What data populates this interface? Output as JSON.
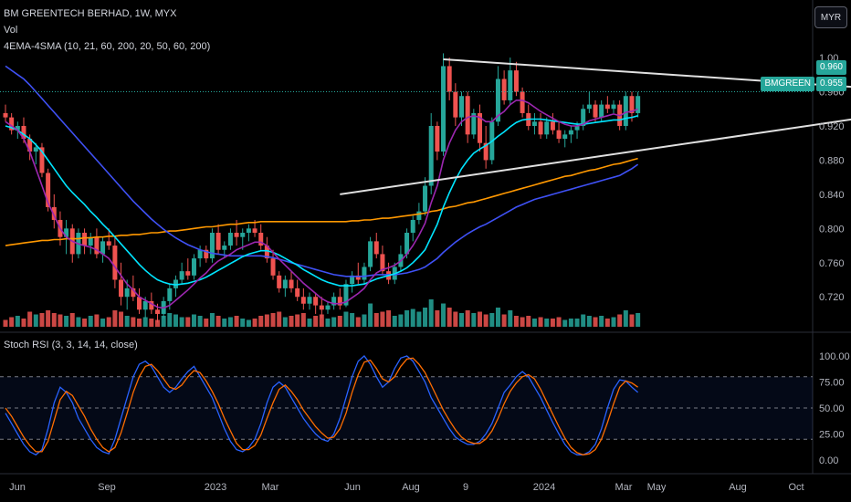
{
  "header": {
    "symbol_line": "BM GREENTECH BERHAD, 1W, MYX",
    "vol_label": "Vol",
    "indicator_label": "4EMA-4SMA (10, 21, 60, 200, 20, 50, 60, 200)"
  },
  "currency_button": "MYR",
  "price_tags": {
    "high_tag": "0.960",
    "symbol_tag": "BMGREEN",
    "last_tag": "0.955"
  },
  "colors": {
    "up": "#26a69a",
    "down": "#ef5350",
    "ema10": "#9c27b0",
    "ema21": "#00e5ff",
    "ema60": "#3f51f5",
    "sma200": "#ff9800",
    "stoch_k": "#2962ff",
    "stoch_d": "#ff6d00",
    "trendline": "#e0e0e0"
  },
  "oscillator": {
    "label": "Stoch RSI (3, 3, 14, 14, close)",
    "ticks": [
      "100.00",
      "75.00",
      "50.00",
      "25.00",
      "0.00"
    ]
  },
  "x_labels": [
    "Jun",
    "Sep",
    "2023",
    "Mar",
    "Jun",
    "Aug",
    "9",
    "2024",
    "Mar",
    "May",
    "Aug",
    "Oct"
  ],
  "chart_data": {
    "type": "candlestick",
    "interval": "1W",
    "price_axis": {
      "ticks": [
        "1.00",
        "0.960",
        "0.920",
        "0.880",
        "0.840",
        "0.800",
        "0.760",
        "0.720"
      ],
      "ylim": [
        0.685,
        1.03
      ]
    },
    "candles": [
      [
        0.935,
        0.945,
        0.925,
        0.93
      ],
      [
        0.93,
        0.935,
        0.91,
        0.915
      ],
      [
        0.915,
        0.925,
        0.905,
        0.92
      ],
      [
        0.92,
        0.93,
        0.9,
        0.905
      ],
      [
        0.905,
        0.91,
        0.88,
        0.89
      ],
      [
        0.89,
        0.9,
        0.875,
        0.895
      ],
      [
        0.895,
        0.9,
        0.86,
        0.865
      ],
      [
        0.865,
        0.87,
        0.82,
        0.825
      ],
      [
        0.825,
        0.84,
        0.8,
        0.81
      ],
      [
        0.81,
        0.82,
        0.78,
        0.79
      ],
      [
        0.79,
        0.81,
        0.77,
        0.8
      ],
      [
        0.8,
        0.805,
        0.76,
        0.77
      ],
      [
        0.77,
        0.8,
        0.765,
        0.795
      ],
      [
        0.795,
        0.8,
        0.77,
        0.78
      ],
      [
        0.78,
        0.795,
        0.77,
        0.79
      ],
      [
        0.79,
        0.8,
        0.765,
        0.77
      ],
      [
        0.77,
        0.79,
        0.76,
        0.785
      ],
      [
        0.785,
        0.8,
        0.775,
        0.78
      ],
      [
        0.78,
        0.79,
        0.73,
        0.74
      ],
      [
        0.74,
        0.76,
        0.71,
        0.72
      ],
      [
        0.72,
        0.74,
        0.705,
        0.73
      ],
      [
        0.73,
        0.745,
        0.715,
        0.72
      ],
      [
        0.72,
        0.73,
        0.7,
        0.705
      ],
      [
        0.705,
        0.72,
        0.695,
        0.715
      ],
      [
        0.715,
        0.725,
        0.7,
        0.705
      ],
      [
        0.705,
        0.712,
        0.69,
        0.7
      ],
      [
        0.7,
        0.72,
        0.695,
        0.715
      ],
      [
        0.715,
        0.735,
        0.705,
        0.73
      ],
      [
        0.73,
        0.745,
        0.72,
        0.74
      ],
      [
        0.74,
        0.76,
        0.735,
        0.75
      ],
      [
        0.75,
        0.765,
        0.74,
        0.745
      ],
      [
        0.745,
        0.77,
        0.74,
        0.765
      ],
      [
        0.765,
        0.78,
        0.755,
        0.775
      ],
      [
        0.775,
        0.78,
        0.76,
        0.765
      ],
      [
        0.765,
        0.8,
        0.76,
        0.795
      ],
      [
        0.795,
        0.805,
        0.77,
        0.775
      ],
      [
        0.775,
        0.785,
        0.765,
        0.78
      ],
      [
        0.78,
        0.8,
        0.775,
        0.795
      ],
      [
        0.795,
        0.81,
        0.78,
        0.79
      ],
      [
        0.79,
        0.8,
        0.775,
        0.795
      ],
      [
        0.795,
        0.805,
        0.785,
        0.8
      ],
      [
        0.8,
        0.81,
        0.79,
        0.795
      ],
      [
        0.795,
        0.805,
        0.775,
        0.78
      ],
      [
        0.78,
        0.79,
        0.76,
        0.765
      ],
      [
        0.765,
        0.775,
        0.74,
        0.745
      ],
      [
        0.745,
        0.75,
        0.725,
        0.73
      ],
      [
        0.73,
        0.745,
        0.72,
        0.74
      ],
      [
        0.74,
        0.75,
        0.725,
        0.73
      ],
      [
        0.73,
        0.74,
        0.715,
        0.72
      ],
      [
        0.72,
        0.73,
        0.705,
        0.712
      ],
      [
        0.712,
        0.725,
        0.705,
        0.72
      ],
      [
        0.72,
        0.725,
        0.7,
        0.71
      ],
      [
        0.71,
        0.72,
        0.695,
        0.705
      ],
      [
        0.705,
        0.715,
        0.7,
        0.71
      ],
      [
        0.71,
        0.725,
        0.705,
        0.72
      ],
      [
        0.72,
        0.73,
        0.705,
        0.71
      ],
      [
        0.71,
        0.74,
        0.708,
        0.735
      ],
      [
        0.735,
        0.75,
        0.725,
        0.745
      ],
      [
        0.745,
        0.76,
        0.735,
        0.74
      ],
      [
        0.74,
        0.76,
        0.735,
        0.755
      ],
      [
        0.755,
        0.79,
        0.75,
        0.785
      ],
      [
        0.785,
        0.795,
        0.765,
        0.77
      ],
      [
        0.77,
        0.78,
        0.745,
        0.75
      ],
      [
        0.75,
        0.76,
        0.735,
        0.74
      ],
      [
        0.74,
        0.76,
        0.735,
        0.755
      ],
      [
        0.755,
        0.78,
        0.75,
        0.77
      ],
      [
        0.77,
        0.8,
        0.765,
        0.795
      ],
      [
        0.795,
        0.815,
        0.785,
        0.81
      ],
      [
        0.81,
        0.83,
        0.805,
        0.82
      ],
      [
        0.82,
        0.86,
        0.815,
        0.85
      ],
      [
        0.85,
        0.935,
        0.84,
        0.92
      ],
      [
        0.92,
        0.925,
        0.88,
        0.89
      ],
      [
        0.89,
        1.005,
        0.885,
        0.99
      ],
      [
        0.99,
        1.0,
        0.95,
        0.96
      ],
      [
        0.96,
        0.97,
        0.92,
        0.93
      ],
      [
        0.93,
        0.96,
        0.92,
        0.955
      ],
      [
        0.955,
        0.96,
        0.9,
        0.91
      ],
      [
        0.91,
        0.94,
        0.905,
        0.935
      ],
      [
        0.935,
        0.945,
        0.89,
        0.9
      ],
      [
        0.9,
        0.92,
        0.87,
        0.88
      ],
      [
        0.88,
        0.93,
        0.875,
        0.925
      ],
      [
        0.925,
        0.99,
        0.92,
        0.975
      ],
      [
        0.975,
        0.985,
        0.945,
        0.95
      ],
      [
        0.95,
        1.0,
        0.945,
        0.985
      ],
      [
        0.985,
        0.995,
        0.955,
        0.96
      ],
      [
        0.96,
        0.965,
        0.93,
        0.935
      ],
      [
        0.935,
        0.945,
        0.915,
        0.92
      ],
      [
        0.92,
        0.935,
        0.91,
        0.925
      ],
      [
        0.925,
        0.935,
        0.905,
        0.91
      ],
      [
        0.91,
        0.93,
        0.905,
        0.925
      ],
      [
        0.925,
        0.935,
        0.91,
        0.915
      ],
      [
        0.915,
        0.925,
        0.9,
        0.905
      ],
      [
        0.905,
        0.915,
        0.895,
        0.91
      ],
      [
        0.91,
        0.92,
        0.9,
        0.915
      ],
      [
        0.915,
        0.925,
        0.905,
        0.92
      ],
      [
        0.92,
        0.945,
        0.915,
        0.94
      ],
      [
        0.94,
        0.96,
        0.935,
        0.945
      ],
      [
        0.945,
        0.95,
        0.925,
        0.93
      ],
      [
        0.93,
        0.95,
        0.925,
        0.945
      ],
      [
        0.945,
        0.955,
        0.935,
        0.94
      ],
      [
        0.94,
        0.95,
        0.935,
        0.945
      ],
      [
        0.945,
        0.95,
        0.915,
        0.92
      ],
      [
        0.92,
        0.96,
        0.915,
        0.955
      ],
      [
        0.955,
        0.96,
        0.925,
        0.935
      ],
      [
        0.935,
        0.96,
        0.93,
        0.955
      ]
    ],
    "volume": [
      0.25,
      0.35,
      0.4,
      0.3,
      0.55,
      0.45,
      0.5,
      0.6,
      0.5,
      0.45,
      0.4,
      0.5,
      0.35,
      0.3,
      0.4,
      0.45,
      0.3,
      0.35,
      0.6,
      0.55,
      0.4,
      0.35,
      0.3,
      0.35,
      0.3,
      0.25,
      0.4,
      0.5,
      0.45,
      0.35,
      0.35,
      0.45,
      0.4,
      0.3,
      0.5,
      0.4,
      0.3,
      0.35,
      0.4,
      0.3,
      0.25,
      0.3,
      0.4,
      0.45,
      0.5,
      0.55,
      0.35,
      0.4,
      0.45,
      0.5,
      0.3,
      0.4,
      0.45,
      0.3,
      0.35,
      0.4,
      0.55,
      0.5,
      0.35,
      0.45,
      0.85,
      0.5,
      0.55,
      0.6,
      0.4,
      0.45,
      0.6,
      0.65,
      0.55,
      0.7,
      1.0,
      0.6,
      0.85,
      0.7,
      0.55,
      0.5,
      0.6,
      0.5,
      0.55,
      0.45,
      0.5,
      0.7,
      0.45,
      0.6,
      0.4,
      0.35,
      0.4,
      0.3,
      0.35,
      0.3,
      0.3,
      0.35,
      0.25,
      0.3,
      0.3,
      0.45,
      0.4,
      0.35,
      0.4,
      0.3,
      0.35,
      0.45,
      0.6,
      0.45,
      0.5
    ],
    "ema10": [
      0.925,
      0.92,
      0.915,
      0.905,
      0.89,
      0.87,
      0.85,
      0.83,
      0.815,
      0.8,
      0.79,
      0.785,
      0.782,
      0.78,
      0.778,
      0.775,
      0.77,
      0.765,
      0.755,
      0.745,
      0.735,
      0.728,
      0.72,
      0.716,
      0.712,
      0.708,
      0.707,
      0.71,
      0.716,
      0.722,
      0.728,
      0.735,
      0.742,
      0.748,
      0.756,
      0.762,
      0.766,
      0.77,
      0.775,
      0.778,
      0.781,
      0.784,
      0.784,
      0.78,
      0.772,
      0.764,
      0.757,
      0.75,
      0.743,
      0.736,
      0.73,
      0.724,
      0.718,
      0.714,
      0.712,
      0.712,
      0.714,
      0.719,
      0.724,
      0.73,
      0.74,
      0.748,
      0.752,
      0.754,
      0.757,
      0.762,
      0.77,
      0.78,
      0.792,
      0.806,
      0.83,
      0.85,
      0.88,
      0.9,
      0.915,
      0.925,
      0.93,
      0.932,
      0.93,
      0.925,
      0.925,
      0.932,
      0.937,
      0.945,
      0.95,
      0.95,
      0.947,
      0.942,
      0.937,
      0.933,
      0.929,
      0.925,
      0.922,
      0.92,
      0.92,
      0.922,
      0.926,
      0.928,
      0.93,
      0.932,
      0.934,
      0.932,
      0.936,
      0.937,
      0.94
    ],
    "ema21": [
      0.92,
      0.918,
      0.915,
      0.91,
      0.905,
      0.898,
      0.89,
      0.88,
      0.87,
      0.86,
      0.85,
      0.842,
      0.835,
      0.828,
      0.82,
      0.813,
      0.805,
      0.798,
      0.79,
      0.782,
      0.774,
      0.766,
      0.758,
      0.751,
      0.745,
      0.74,
      0.737,
      0.735,
      0.734,
      0.735,
      0.736,
      0.738,
      0.74,
      0.743,
      0.747,
      0.751,
      0.755,
      0.759,
      0.763,
      0.767,
      0.77,
      0.772,
      0.774,
      0.774,
      0.772,
      0.769,
      0.765,
      0.761,
      0.757,
      0.752,
      0.748,
      0.744,
      0.74,
      0.737,
      0.735,
      0.733,
      0.733,
      0.733,
      0.734,
      0.735,
      0.738,
      0.741,
      0.743,
      0.745,
      0.747,
      0.75,
      0.754,
      0.76,
      0.767,
      0.775,
      0.79,
      0.805,
      0.825,
      0.842,
      0.857,
      0.87,
      0.88,
      0.888,
      0.893,
      0.897,
      0.902,
      0.908,
      0.913,
      0.919,
      0.924,
      0.927,
      0.928,
      0.928,
      0.928,
      0.927,
      0.926,
      0.925,
      0.924,
      0.923,
      0.922,
      0.922,
      0.923,
      0.924,
      0.925,
      0.926,
      0.927,
      0.927,
      0.929,
      0.93,
      0.932
    ],
    "ema60": [
      0.99,
      0.985,
      0.98,
      0.975,
      0.968,
      0.96,
      0.952,
      0.944,
      0.936,
      0.928,
      0.92,
      0.912,
      0.904,
      0.896,
      0.888,
      0.88,
      0.872,
      0.864,
      0.856,
      0.848,
      0.84,
      0.832,
      0.825,
      0.818,
      0.811,
      0.805,
      0.799,
      0.794,
      0.789,
      0.785,
      0.781,
      0.778,
      0.775,
      0.773,
      0.771,
      0.77,
      0.769,
      0.768,
      0.768,
      0.768,
      0.768,
      0.768,
      0.768,
      0.767,
      0.766,
      0.764,
      0.762,
      0.76,
      0.758,
      0.756,
      0.754,
      0.752,
      0.75,
      0.748,
      0.746,
      0.745,
      0.744,
      0.744,
      0.744,
      0.744,
      0.745,
      0.746,
      0.746,
      0.746,
      0.746,
      0.747,
      0.748,
      0.75,
      0.752,
      0.755,
      0.76,
      0.765,
      0.772,
      0.778,
      0.784,
      0.789,
      0.794,
      0.798,
      0.802,
      0.805,
      0.809,
      0.813,
      0.817,
      0.821,
      0.825,
      0.828,
      0.831,
      0.834,
      0.836,
      0.838,
      0.84,
      0.842,
      0.844,
      0.846,
      0.848,
      0.85,
      0.852,
      0.854,
      0.856,
      0.858,
      0.86,
      0.862,
      0.866,
      0.87,
      0.875
    ],
    "sma200": [
      0.78,
      0.781,
      0.782,
      0.783,
      0.784,
      0.785,
      0.786,
      0.786,
      0.787,
      0.787,
      0.788,
      0.788,
      0.788,
      0.789,
      0.789,
      0.79,
      0.79,
      0.791,
      0.791,
      0.792,
      0.792,
      0.793,
      0.793,
      0.794,
      0.795,
      0.795,
      0.796,
      0.797,
      0.797,
      0.798,
      0.799,
      0.8,
      0.801,
      0.802,
      0.802,
      0.803,
      0.804,
      0.805,
      0.805,
      0.806,
      0.807,
      0.807,
      0.808,
      0.808,
      0.808,
      0.808,
      0.808,
      0.808,
      0.808,
      0.808,
      0.808,
      0.808,
      0.808,
      0.808,
      0.808,
      0.808,
      0.808,
      0.809,
      0.809,
      0.81,
      0.81,
      0.811,
      0.812,
      0.812,
      0.813,
      0.814,
      0.815,
      0.816,
      0.817,
      0.818,
      0.82,
      0.821,
      0.823,
      0.825,
      0.826,
      0.828,
      0.83,
      0.831,
      0.833,
      0.835,
      0.837,
      0.839,
      0.841,
      0.843,
      0.845,
      0.847,
      0.849,
      0.851,
      0.853,
      0.855,
      0.857,
      0.859,
      0.861,
      0.862,
      0.864,
      0.866,
      0.868,
      0.869,
      0.871,
      0.873,
      0.875,
      0.876,
      0.878,
      0.88,
      0.882
    ],
    "trendlines": [
      {
        "name": "upper",
        "points": [
          [
            72,
            0.998
          ],
          [
            151,
            0.96
          ]
        ]
      },
      {
        "name": "lower",
        "points": [
          [
            55,
            0.84
          ],
          [
            151,
            0.94
          ]
        ]
      }
    ],
    "horizontal_line": 0.96,
    "stoch_k": [
      45,
      35,
      25,
      15,
      8,
      5,
      10,
      30,
      55,
      70,
      65,
      55,
      40,
      30,
      20,
      12,
      8,
      6,
      20,
      40,
      60,
      80,
      92,
      95,
      90,
      80,
      70,
      65,
      70,
      78,
      85,
      90,
      80,
      70,
      60,
      45,
      30,
      18,
      10,
      8,
      12,
      20,
      35,
      55,
      70,
      75,
      70,
      60,
      50,
      40,
      32,
      25,
      20,
      18,
      25,
      40,
      60,
      80,
      95,
      100,
      92,
      80,
      70,
      75,
      88,
      98,
      100,
      95,
      85,
      75,
      60,
      50,
      40,
      30,
      22,
      18,
      15,
      15,
      18,
      25,
      35,
      50,
      65,
      72,
      80,
      85,
      80,
      70,
      60,
      48,
      36,
      25,
      15,
      8,
      5,
      5,
      8,
      15,
      30,
      50,
      68,
      77,
      76,
      70,
      65
    ],
    "stoch_d": [
      50,
      42,
      32,
      22,
      14,
      8,
      8,
      18,
      38,
      58,
      66,
      62,
      52,
      42,
      30,
      20,
      12,
      8,
      12,
      26,
      45,
      65,
      80,
      90,
      92,
      86,
      78,
      70,
      68,
      72,
      80,
      86,
      84,
      76,
      66,
      54,
      40,
      28,
      16,
      10,
      10,
      14,
      24,
      40,
      55,
      68,
      72,
      66,
      58,
      48,
      40,
      32,
      26,
      21,
      22,
      30,
      45,
      65,
      82,
      94,
      96,
      88,
      78,
      75,
      80,
      90,
      97,
      98,
      92,
      84,
      72,
      60,
      48,
      38,
      29,
      22,
      18,
      16,
      16,
      20,
      28,
      40,
      54,
      66,
      74,
      80,
      82,
      78,
      68,
      56,
      44,
      32,
      21,
      12,
      7,
      5,
      6,
      10,
      20,
      36,
      54,
      70,
      76,
      74,
      70
    ]
  }
}
